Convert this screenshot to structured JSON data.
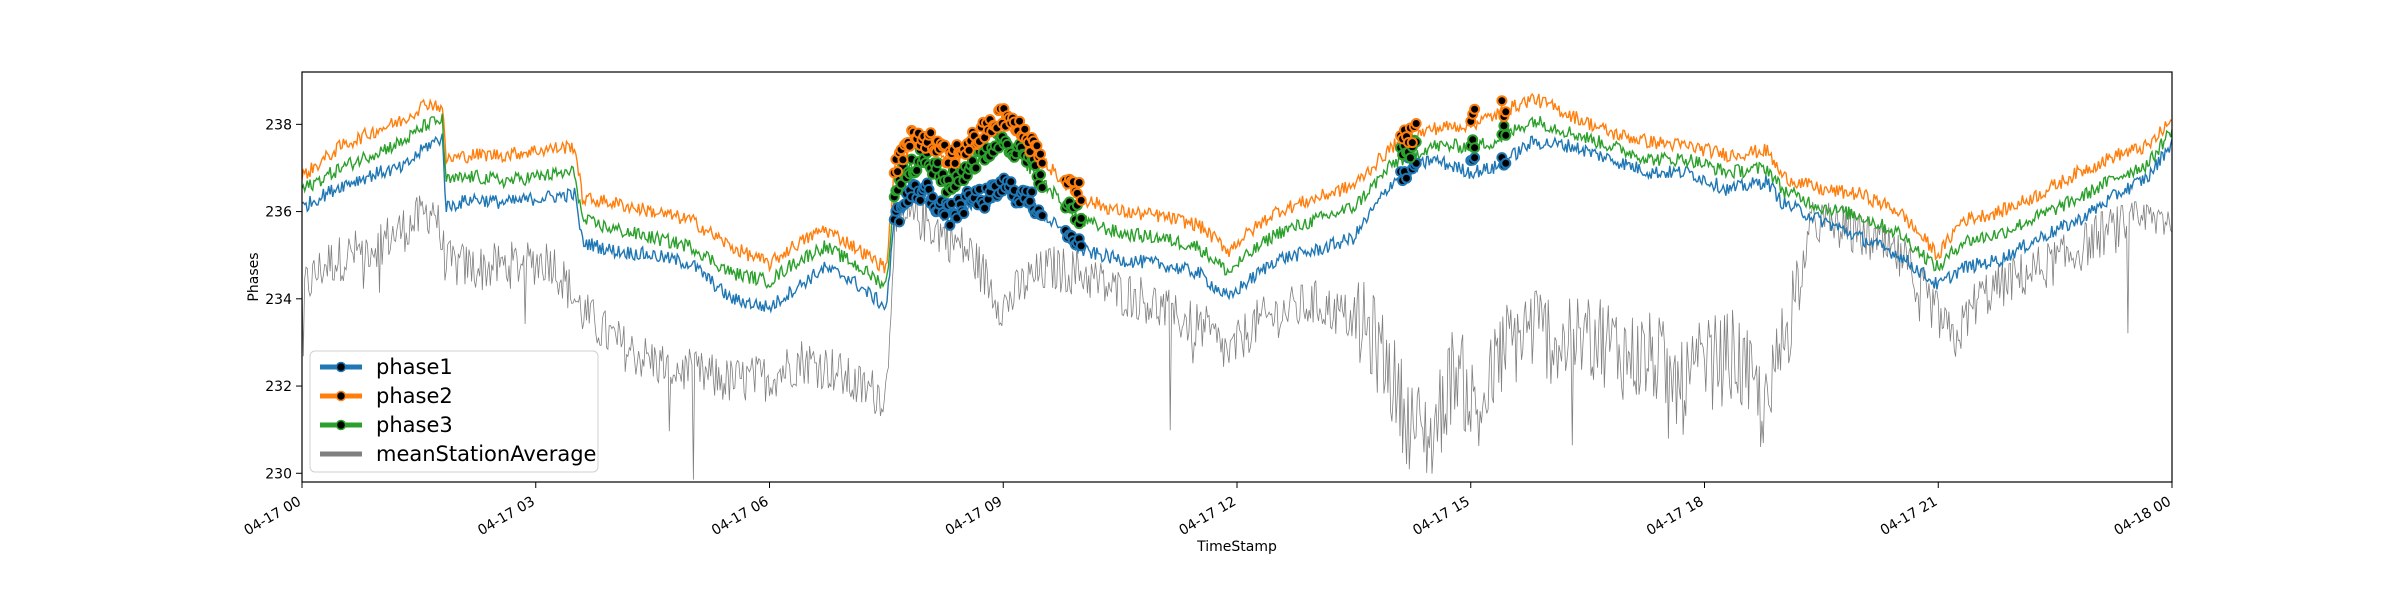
{
  "chart_data": {
    "type": "line",
    "title": "",
    "xlabel": "TimeStamp",
    "ylabel": "Phases",
    "xlim": [
      "04-17 00:00",
      "04-18 00:00"
    ],
    "ylim": [
      229.8,
      239.2
    ],
    "grid": false,
    "legend_position": "lower-left",
    "x_ticks": [
      {
        "label": "04-17 00",
        "hour": 0
      },
      {
        "label": "04-17 03",
        "hour": 3
      },
      {
        "label": "04-17 06",
        "hour": 6
      },
      {
        "label": "04-17 09",
        "hour": 9
      },
      {
        "label": "04-17 12",
        "hour": 12
      },
      {
        "label": "04-17 15",
        "hour": 15
      },
      {
        "label": "04-17 18",
        "hour": 18
      },
      {
        "label": "04-17 21",
        "hour": 21
      },
      {
        "label": "04-18 00",
        "hour": 24
      }
    ],
    "y_ticks": [
      230,
      232,
      234,
      236,
      238
    ],
    "series": [
      {
        "name": "phase1",
        "color": "#1f77b4",
        "points": [
          [
            0.0,
            236.1
          ],
          [
            0.5,
            236.6
          ],
          [
            1.0,
            236.9
          ],
          [
            1.3,
            237.0
          ],
          [
            1.6,
            237.5
          ],
          [
            1.8,
            237.7
          ],
          [
            1.85,
            236.1
          ],
          [
            2.2,
            236.3
          ],
          [
            2.6,
            236.2
          ],
          [
            3.0,
            236.3
          ],
          [
            3.5,
            236.4
          ],
          [
            3.6,
            235.3
          ],
          [
            4.0,
            235.1
          ],
          [
            4.5,
            235.0
          ],
          [
            5.0,
            234.8
          ],
          [
            5.5,
            234.0
          ],
          [
            6.0,
            233.8
          ],
          [
            6.3,
            234.2
          ],
          [
            6.7,
            234.7
          ],
          [
            7.0,
            234.5
          ],
          [
            7.5,
            233.8
          ],
          [
            7.6,
            235.7
          ],
          [
            7.8,
            236.3
          ],
          [
            8.0,
            236.4
          ],
          [
            8.3,
            235.8
          ],
          [
            8.6,
            236.2
          ],
          [
            8.8,
            236.2
          ],
          [
            9.0,
            236.5
          ],
          [
            9.3,
            236.2
          ],
          [
            9.6,
            235.8
          ],
          [
            10.0,
            235.1
          ],
          [
            10.5,
            234.9
          ],
          [
            11.0,
            234.8
          ],
          [
            11.5,
            234.6
          ],
          [
            11.9,
            234.0
          ],
          [
            12.0,
            234.2
          ],
          [
            12.5,
            234.9
          ],
          [
            13.0,
            235.1
          ],
          [
            13.5,
            235.4
          ],
          [
            14.0,
            236.7
          ],
          [
            14.5,
            237.2
          ],
          [
            15.0,
            236.9
          ],
          [
            15.3,
            237.0
          ],
          [
            15.8,
            237.6
          ],
          [
            16.3,
            237.5
          ],
          [
            16.8,
            237.2
          ],
          [
            17.3,
            236.9
          ],
          [
            17.8,
            236.9
          ],
          [
            18.3,
            236.5
          ],
          [
            18.8,
            236.7
          ],
          [
            19.0,
            236.2
          ],
          [
            19.5,
            235.8
          ],
          [
            20.0,
            235.4
          ],
          [
            20.5,
            235.0
          ],
          [
            21.0,
            234.3
          ],
          [
            21.3,
            234.7
          ],
          [
            21.8,
            234.9
          ],
          [
            22.3,
            235.4
          ],
          [
            22.8,
            235.8
          ],
          [
            23.3,
            236.4
          ],
          [
            23.7,
            236.8
          ],
          [
            24.0,
            237.6
          ]
        ]
      },
      {
        "name": "phase2",
        "color": "#ff7f0e",
        "points": [
          [
            0.0,
            236.8
          ],
          [
            0.5,
            237.5
          ],
          [
            1.0,
            237.9
          ],
          [
            1.3,
            238.1
          ],
          [
            1.6,
            238.5
          ],
          [
            1.8,
            238.4
          ],
          [
            1.85,
            237.2
          ],
          [
            2.2,
            237.3
          ],
          [
            2.6,
            237.3
          ],
          [
            3.0,
            237.4
          ],
          [
            3.5,
            237.5
          ],
          [
            3.6,
            236.3
          ],
          [
            4.0,
            236.2
          ],
          [
            4.5,
            236.0
          ],
          [
            5.0,
            235.8
          ],
          [
            5.5,
            235.2
          ],
          [
            6.0,
            234.8
          ],
          [
            6.3,
            235.2
          ],
          [
            6.7,
            235.6
          ],
          [
            7.0,
            235.3
          ],
          [
            7.5,
            234.7
          ],
          [
            7.6,
            236.9
          ],
          [
            7.8,
            237.5
          ],
          [
            8.0,
            237.6
          ],
          [
            8.3,
            237.1
          ],
          [
            8.6,
            237.5
          ],
          [
            8.8,
            237.8
          ],
          [
            9.0,
            238.1
          ],
          [
            9.3,
            237.6
          ],
          [
            9.6,
            237.0
          ],
          [
            10.0,
            236.3
          ],
          [
            10.5,
            236.0
          ],
          [
            11.0,
            235.9
          ],
          [
            11.5,
            235.7
          ],
          [
            11.9,
            235.1
          ],
          [
            12.0,
            235.3
          ],
          [
            12.5,
            236.0
          ],
          [
            13.0,
            236.3
          ],
          [
            13.5,
            236.6
          ],
          [
            14.0,
            237.5
          ],
          [
            14.5,
            237.9
          ],
          [
            15.0,
            238.0
          ],
          [
            15.3,
            238.2
          ],
          [
            15.8,
            238.6
          ],
          [
            16.3,
            238.2
          ],
          [
            16.8,
            237.8
          ],
          [
            17.3,
            237.6
          ],
          [
            17.8,
            237.5
          ],
          [
            18.3,
            237.3
          ],
          [
            18.8,
            237.4
          ],
          [
            19.0,
            236.8
          ],
          [
            19.5,
            236.5
          ],
          [
            20.0,
            236.4
          ],
          [
            20.5,
            236.0
          ],
          [
            21.0,
            235.0
          ],
          [
            21.3,
            235.8
          ],
          [
            21.8,
            236.0
          ],
          [
            22.3,
            236.4
          ],
          [
            22.8,
            236.9
          ],
          [
            23.3,
            237.3
          ],
          [
            23.7,
            237.5
          ],
          [
            24.0,
            238.1
          ]
        ]
      },
      {
        "name": "phase3",
        "color": "#2ca02c",
        "points": [
          [
            0.0,
            236.5
          ],
          [
            0.5,
            237.0
          ],
          [
            1.0,
            237.4
          ],
          [
            1.3,
            237.6
          ],
          [
            1.6,
            238.0
          ],
          [
            1.8,
            238.1
          ],
          [
            1.85,
            236.7
          ],
          [
            2.2,
            236.8
          ],
          [
            2.6,
            236.7
          ],
          [
            3.0,
            236.8
          ],
          [
            3.5,
            236.9
          ],
          [
            3.6,
            235.8
          ],
          [
            4.0,
            235.6
          ],
          [
            4.5,
            235.4
          ],
          [
            5.0,
            235.2
          ],
          [
            5.5,
            234.6
          ],
          [
            6.0,
            234.4
          ],
          [
            6.3,
            234.8
          ],
          [
            6.7,
            235.2
          ],
          [
            7.0,
            234.9
          ],
          [
            7.5,
            234.3
          ],
          [
            7.6,
            236.4
          ],
          [
            7.8,
            237.0
          ],
          [
            8.0,
            237.1
          ],
          [
            8.3,
            236.5
          ],
          [
            8.6,
            237.0
          ],
          [
            8.8,
            237.3
          ],
          [
            9.0,
            237.6
          ],
          [
            9.3,
            237.1
          ],
          [
            9.6,
            236.5
          ],
          [
            10.0,
            235.8
          ],
          [
            10.5,
            235.5
          ],
          [
            11.0,
            235.4
          ],
          [
            11.5,
            235.2
          ],
          [
            11.9,
            234.6
          ],
          [
            12.0,
            234.8
          ],
          [
            12.5,
            235.5
          ],
          [
            13.0,
            235.8
          ],
          [
            13.5,
            236.1
          ],
          [
            14.0,
            237.1
          ],
          [
            14.5,
            237.5
          ],
          [
            15.0,
            237.5
          ],
          [
            15.3,
            237.6
          ],
          [
            15.8,
            238.1
          ],
          [
            16.3,
            237.8
          ],
          [
            16.8,
            237.5
          ],
          [
            17.3,
            237.2
          ],
          [
            17.8,
            237.2
          ],
          [
            18.3,
            236.9
          ],
          [
            18.8,
            237.0
          ],
          [
            19.0,
            236.5
          ],
          [
            19.5,
            236.1
          ],
          [
            20.0,
            235.9
          ],
          [
            20.5,
            235.5
          ],
          [
            21.0,
            234.7
          ],
          [
            21.3,
            235.3
          ],
          [
            21.8,
            235.5
          ],
          [
            22.3,
            235.9
          ],
          [
            22.8,
            236.3
          ],
          [
            23.3,
            236.8
          ],
          [
            23.7,
            237.1
          ],
          [
            24.0,
            237.9
          ]
        ]
      },
      {
        "name": "meanStationAverage",
        "color": "#808080",
        "points": [
          [
            0.0,
            234.2
          ],
          [
            0.3,
            234.8
          ],
          [
            0.6,
            235.0
          ],
          [
            1.0,
            235.3
          ],
          [
            1.4,
            235.7
          ],
          [
            1.7,
            236.1
          ],
          [
            1.85,
            234.8
          ],
          [
            2.3,
            234.7
          ],
          [
            2.8,
            234.8
          ],
          [
            3.2,
            234.9
          ],
          [
            3.6,
            233.7
          ],
          [
            3.9,
            233.2
          ],
          [
            4.2,
            232.8
          ],
          [
            4.6,
            232.5
          ],
          [
            5.0,
            232.3
          ],
          [
            5.5,
            232.1
          ],
          [
            6.0,
            232.2
          ],
          [
            6.4,
            232.6
          ],
          [
            6.8,
            232.4
          ],
          [
            7.1,
            232.0
          ],
          [
            7.5,
            231.8
          ],
          [
            7.6,
            235.6
          ],
          [
            7.9,
            235.9
          ],
          [
            8.3,
            235.4
          ],
          [
            8.6,
            235.0
          ],
          [
            8.8,
            234.4
          ],
          [
            9.0,
            233.8
          ],
          [
            9.3,
            234.4
          ],
          [
            9.6,
            234.7
          ],
          [
            10.0,
            234.6
          ],
          [
            10.4,
            234.2
          ],
          [
            10.8,
            234.0
          ],
          [
            11.2,
            233.6
          ],
          [
            11.6,
            233.3
          ],
          [
            11.9,
            232.7
          ],
          [
            12.2,
            233.4
          ],
          [
            12.6,
            233.7
          ],
          [
            13.0,
            233.9
          ],
          [
            13.4,
            233.6
          ],
          [
            13.7,
            233.2
          ],
          [
            13.9,
            232.6
          ],
          [
            14.2,
            231.2
          ],
          [
            14.5,
            230.8
          ],
          [
            14.8,
            232.5
          ],
          [
            15.1,
            231.3
          ],
          [
            15.4,
            232.8
          ],
          [
            15.8,
            233.4
          ],
          [
            16.2,
            232.9
          ],
          [
            16.6,
            233.2
          ],
          [
            17.0,
            232.7
          ],
          [
            17.4,
            232.6
          ],
          [
            17.7,
            231.9
          ],
          [
            18.0,
            232.5
          ],
          [
            18.4,
            232.7
          ],
          [
            18.8,
            231.3
          ],
          [
            19.0,
            233.0
          ],
          [
            19.4,
            235.8
          ],
          [
            19.8,
            235.6
          ],
          [
            20.2,
            235.3
          ],
          [
            20.6,
            234.8
          ],
          [
            21.0,
            233.6
          ],
          [
            21.2,
            233.0
          ],
          [
            21.5,
            234.0
          ],
          [
            21.9,
            234.4
          ],
          [
            22.3,
            234.7
          ],
          [
            22.7,
            235.0
          ],
          [
            23.1,
            235.5
          ],
          [
            23.5,
            235.7
          ],
          [
            24.0,
            235.9
          ]
        ]
      }
    ],
    "markers": {
      "note": "Outlier points drawn with black dots on each phase series",
      "ranges": [
        [
          7.6,
          9.5
        ],
        [
          14.1,
          14.3
        ],
        [
          15.0,
          15.05
        ],
        [
          15.4,
          15.45
        ],
        [
          9.8,
          10.0
        ]
      ]
    }
  },
  "legend": {
    "items": [
      {
        "label": "phase1",
        "color": "#1f77b4",
        "marker": true
      },
      {
        "label": "phase2",
        "color": "#ff7f0e",
        "marker": true
      },
      {
        "label": "phase3",
        "color": "#2ca02c",
        "marker": true
      },
      {
        "label": "meanStationAverage",
        "color": "#808080",
        "marker": false
      }
    ]
  }
}
